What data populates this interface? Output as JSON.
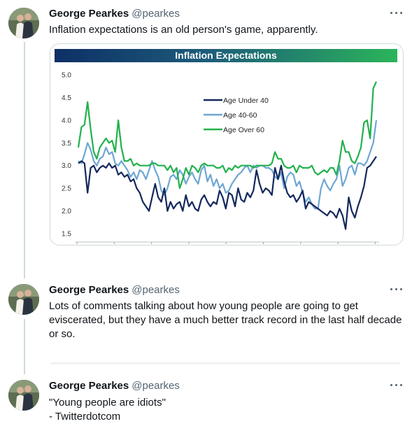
{
  "tweets": [
    {
      "name": "George Pearkes",
      "handle": "@pearkes",
      "text": "Inflation expectations is an old person's game, apparently."
    },
    {
      "name": "George Pearkes",
      "handle": "@pearkes",
      "text": "Lots of comments talking about how young people are going to get eviscerated, but they have a much better track record in the last half decade or so."
    },
    {
      "name": "George Pearkes",
      "handle": "@pearkes",
      "text": "\"Young people are idiots\"\n- Twitterdotcom"
    }
  ],
  "icons": {
    "more": "more-horizontal-icon",
    "avatar": "avatar-photo"
  },
  "colors": {
    "thread_line": "#cfd9de",
    "handle": "#536471",
    "under40": "#14285e",
    "age40_60": "#6ea6d4",
    "over60": "#22b14c"
  },
  "chart_data": {
    "type": "line",
    "title": "Inflation Expectations",
    "ylim": [
      1.5,
      5.0
    ],
    "yticks": [
      "5.0",
      "4.5",
      "4.0",
      "3.5",
      "3.0",
      "2.5",
      "2.0",
      "1.5"
    ],
    "grid": false,
    "legend_position": "top-center",
    "series": [
      {
        "name": "Age Under 40",
        "color": "#14285e",
        "values": [
          3.05,
          3.1,
          3.05,
          2.4,
          2.95,
          3.0,
          2.85,
          2.95,
          3.0,
          2.95,
          3.05,
          2.95,
          3.0,
          2.8,
          2.85,
          2.75,
          2.8,
          2.65,
          2.7,
          2.5,
          2.4,
          2.2,
          2.1,
          2.0,
          2.3,
          2.6,
          2.3,
          2.2,
          2.5,
          2.0,
          2.2,
          2.05,
          2.15,
          2.2,
          2.0,
          2.35,
          2.1,
          2.2,
          2.05,
          2.0,
          2.25,
          2.35,
          2.2,
          2.1,
          2.2,
          2.15,
          2.45,
          2.3,
          2.05,
          2.4,
          2.35,
          2.1,
          2.5,
          2.25,
          2.2,
          2.4,
          2.3,
          2.45,
          2.9,
          2.6,
          2.4,
          2.5,
          2.45,
          2.35,
          2.95,
          2.7,
          3.0,
          2.65,
          2.4,
          2.3,
          2.35,
          2.2,
          2.3,
          2.45,
          2.05,
          2.2,
          2.15,
          2.1,
          2.05,
          2.0,
          1.95,
          1.9,
          2.0,
          1.95,
          1.85,
          2.05,
          1.9,
          1.6,
          2.3,
          2.0,
          1.85,
          2.1,
          2.3,
          2.55,
          2.95,
          3.0,
          3.1,
          3.2
        ]
      },
      {
        "name": "Age 40-60",
        "color": "#6ea6d4",
        "values": [
          3.1,
          3.05,
          3.25,
          3.5,
          3.35,
          3.1,
          3.0,
          3.15,
          3.2,
          3.4,
          3.25,
          3.3,
          3.05,
          3.0,
          3.1,
          3.0,
          2.9,
          2.75,
          2.85,
          2.7,
          2.9,
          2.85,
          2.7,
          2.9,
          3.1,
          2.9,
          2.75,
          2.45,
          2.35,
          2.5,
          2.75,
          2.8,
          2.7,
          2.9,
          2.8,
          2.6,
          2.75,
          2.85,
          2.7,
          2.6,
          2.9,
          3.0,
          2.65,
          2.8,
          2.55,
          2.7,
          2.5,
          2.6,
          2.4,
          2.45,
          2.6,
          2.7,
          2.8,
          2.85,
          2.95,
          3.0,
          2.85,
          3.0,
          2.95,
          3.0,
          3.0,
          2.95,
          2.95,
          2.9,
          2.75,
          2.7,
          2.85,
          2.5,
          2.75,
          2.85,
          2.8,
          2.55,
          2.65,
          2.4,
          2.2,
          2.3,
          2.15,
          2.05,
          2.05,
          2.5,
          2.7,
          2.55,
          2.45,
          2.6,
          2.7,
          3.0,
          2.55,
          2.7,
          2.95,
          3.0,
          2.8,
          3.05,
          3.05,
          3.0,
          3.1,
          3.3,
          3.5,
          4.0
        ]
      },
      {
        "name": "Age Over 60",
        "color": "#22b14c",
        "values": [
          3.4,
          3.85,
          3.9,
          4.4,
          3.8,
          3.3,
          3.15,
          3.4,
          3.5,
          3.6,
          3.5,
          3.55,
          3.3,
          4.0,
          3.4,
          3.1,
          3.1,
          3.15,
          3.0,
          3.05,
          3.0,
          3.0,
          3.0,
          3.0,
          3.05,
          3.05,
          3.0,
          3.0,
          3.0,
          2.9,
          3.0,
          2.85,
          2.95,
          2.5,
          2.7,
          2.95,
          2.8,
          3.0,
          2.95,
          2.85,
          3.0,
          3.05,
          3.0,
          3.0,
          3.0,
          2.95,
          2.95,
          3.0,
          2.85,
          2.95,
          2.9,
          3.0,
          2.95,
          3.0,
          3.0,
          3.0,
          3.0,
          2.95,
          3.0,
          3.0,
          3.0,
          3.0,
          3.0,
          3.05,
          3.3,
          3.15,
          3.15,
          3.0,
          2.95,
          2.95,
          3.0,
          2.85,
          3.0,
          2.95,
          2.95,
          2.95,
          3.0,
          2.85,
          2.8,
          2.85,
          2.9,
          2.85,
          2.95,
          2.95,
          2.8,
          3.1,
          3.55,
          3.3,
          3.3,
          3.1,
          3.05,
          3.2,
          3.4,
          3.95,
          4.0,
          3.6,
          4.7,
          4.85
        ]
      }
    ]
  }
}
